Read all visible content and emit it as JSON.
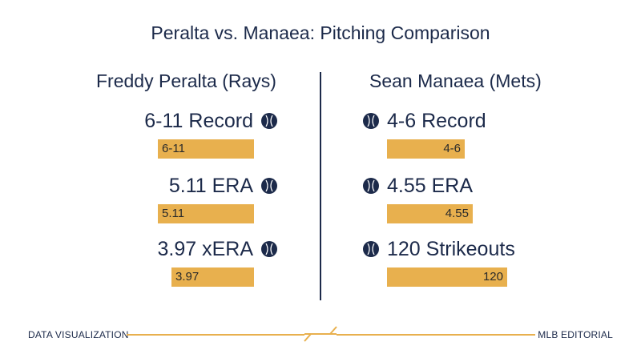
{
  "title": "Peralta vs. Manaea: Pitching Comparison",
  "footer": {
    "left": "DATA VISUALIZATION",
    "right": "MLB EDITORIAL"
  },
  "colors": {
    "navy": "#1c2a4a",
    "bar": "#e8b04e"
  },
  "icons": {
    "stat_marker": "baseball-icon"
  },
  "players": [
    {
      "name": "Freddy Peralta (Rays)",
      "stats": [
        {
          "label": "6-11 Record",
          "bar_label": "6-11"
        },
        {
          "label": "5.11 ERA",
          "bar_label": "5.11"
        },
        {
          "label": "3.97 xERA",
          "bar_label": "3.97"
        }
      ]
    },
    {
      "name": "Sean Manaea (Mets)",
      "stats": [
        {
          "label": "4-6 Record",
          "bar_label": "4-6"
        },
        {
          "label": "4.55 ERA",
          "bar_label": "4.55"
        },
        {
          "label": "120 Strikeouts",
          "bar_label": "120"
        }
      ]
    }
  ],
  "chart_data": {
    "type": "bar",
    "title": "Peralta vs. Manaea: Pitching Comparison",
    "series": [
      {
        "name": "Freddy Peralta (Rays)",
        "categories": [
          "Record",
          "ERA",
          "xERA"
        ],
        "values": [
          "6-11",
          5.11,
          3.97
        ]
      },
      {
        "name": "Sean Manaea (Mets)",
        "categories": [
          "Record",
          "ERA",
          "Strikeouts"
        ],
        "values": [
          "4-6",
          4.55,
          120
        ]
      }
    ]
  }
}
